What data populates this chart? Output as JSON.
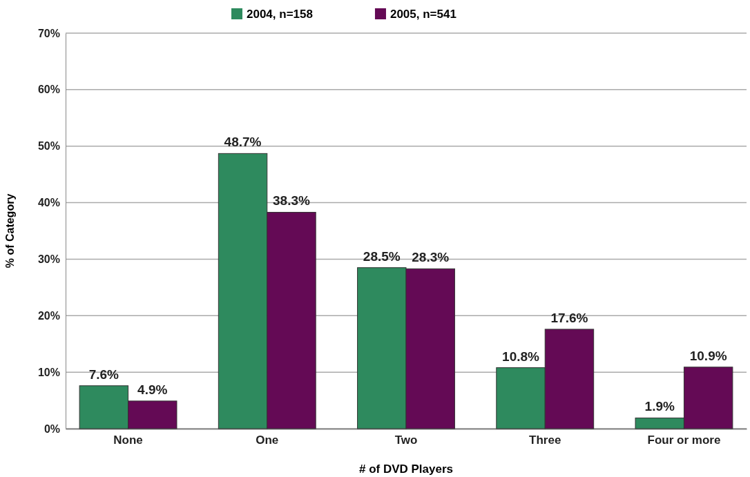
{
  "chart_data": {
    "type": "bar",
    "xlabel": "# of DVD Players",
    "ylabel": "% of Category",
    "categories": [
      "None",
      "One",
      "Two",
      "Three",
      "Four or more"
    ],
    "series": [
      {
        "name": "2004, n=158",
        "color": "#2e8a5e",
        "values": [
          7.6,
          48.7,
          28.5,
          10.8,
          1.9
        ],
        "value_labels": [
          "7.6%",
          "48.7%",
          "28.5%",
          "10.8%",
          "1.9%"
        ]
      },
      {
        "name": "2005, n=541",
        "color": "#640a55",
        "values": [
          4.9,
          38.3,
          28.3,
          17.6,
          10.9
        ],
        "value_labels": [
          "4.9%",
          "38.3%",
          "28.3%",
          "17.6%",
          "10.9%"
        ]
      }
    ],
    "ylim": [
      0,
      70
    ],
    "yticks": [
      {
        "value": 0,
        "label": "0%"
      },
      {
        "value": 10,
        "label": "10%"
      },
      {
        "value": 20,
        "label": "20%"
      },
      {
        "value": 30,
        "label": "30%"
      },
      {
        "value": 40,
        "label": "40%"
      },
      {
        "value": 50,
        "label": "50%"
      },
      {
        "value": 60,
        "label": "60%"
      },
      {
        "value": 70,
        "label": "70%"
      }
    ],
    "grid": "y",
    "legend": "top"
  }
}
